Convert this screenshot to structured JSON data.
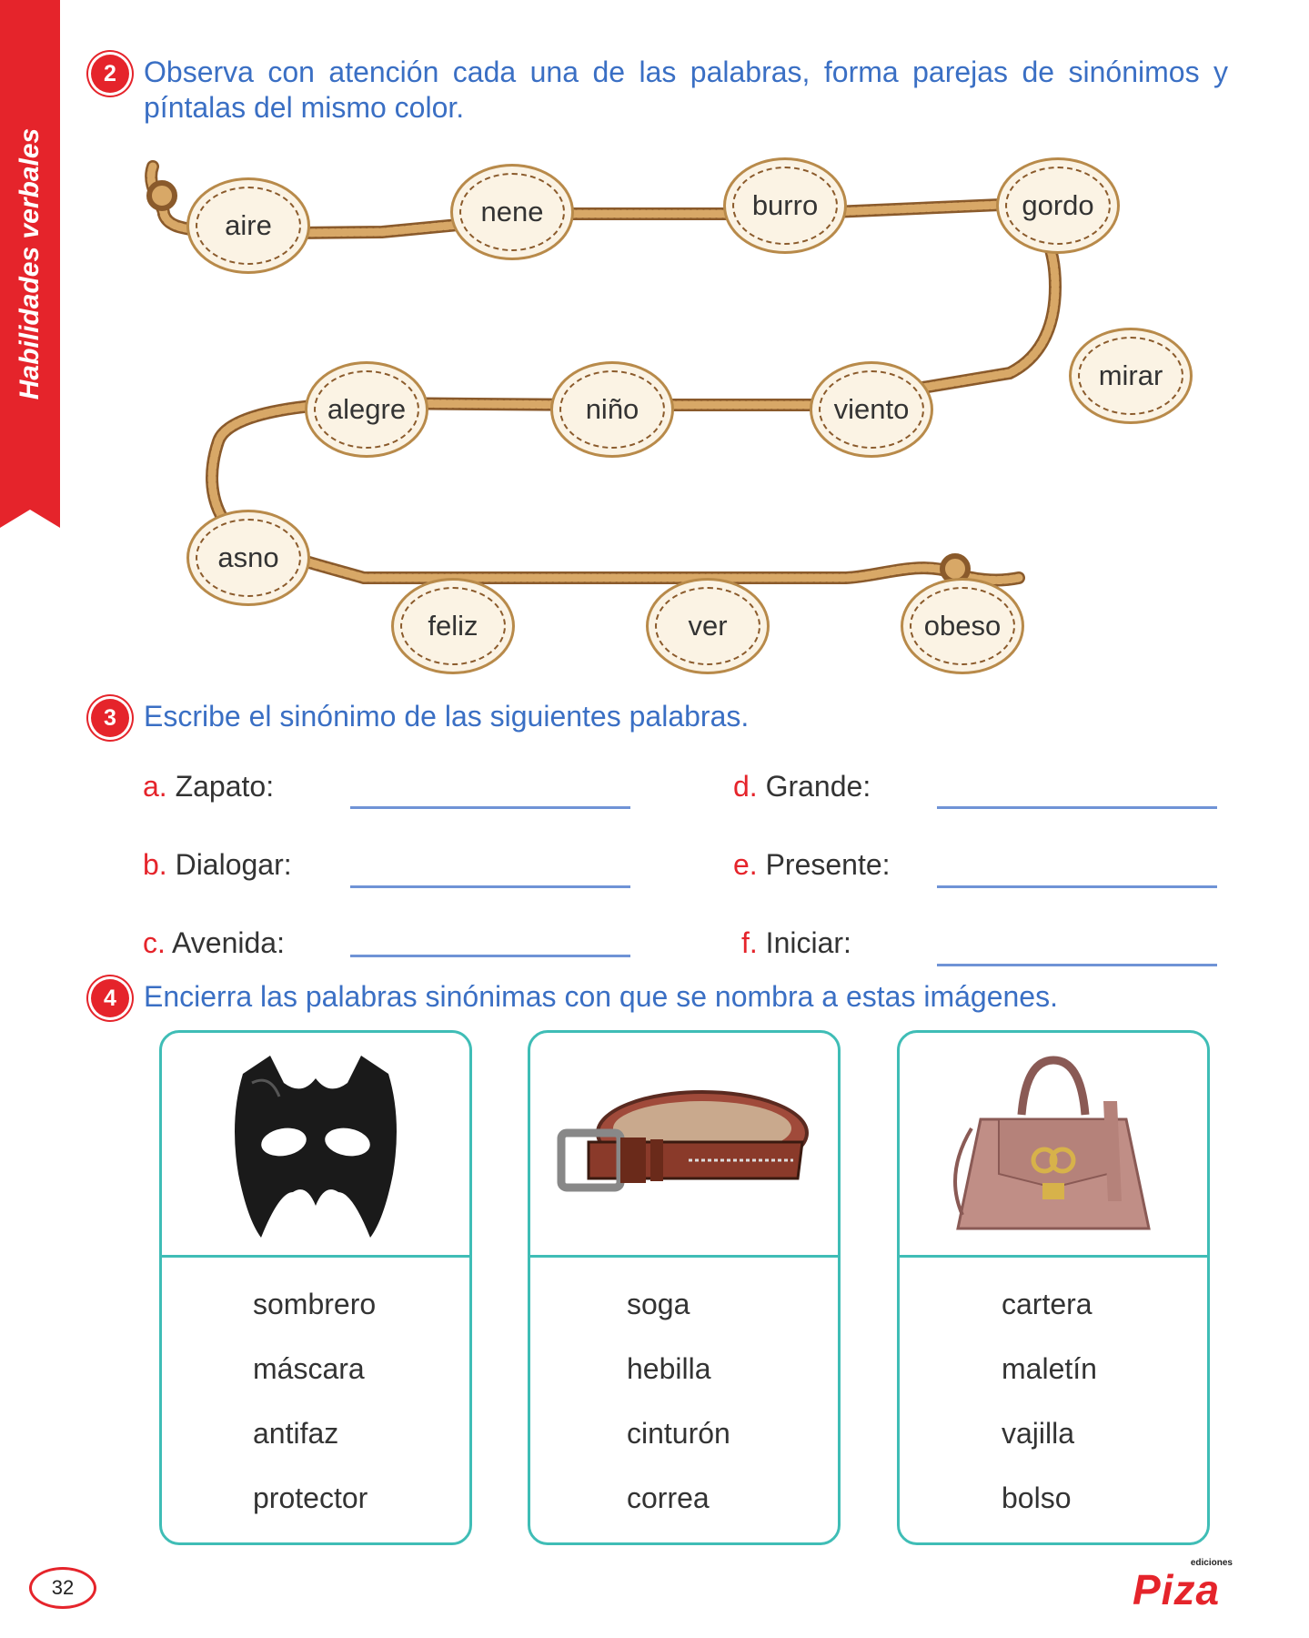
{
  "sidebar": {
    "label": "Habilidades verbales"
  },
  "exercise2": {
    "number": "2",
    "instruction": "Observa con atención cada una de las palabras, forma parejas de sinónimos y píntalas del mismo color.",
    "words": [
      "aire",
      "nene",
      "burro",
      "gordo",
      "mirar",
      "viento",
      "niño",
      "alegre",
      "asno",
      "feliz",
      "ver",
      "obeso"
    ]
  },
  "exercise3": {
    "number": "3",
    "instruction": "Escribe el sinónimo de las siguientes palabras.",
    "items": [
      {
        "letter": "a.",
        "word": "Zapato:"
      },
      {
        "letter": "b.",
        "word": "Dialogar:"
      },
      {
        "letter": "c.",
        "word": "Avenida:"
      },
      {
        "letter": "d.",
        "word": "Grande:"
      },
      {
        "letter": "e.",
        "word": "Presente:"
      },
      {
        "letter": "f.",
        "word": "Iniciar:"
      }
    ]
  },
  "exercise4": {
    "number": "4",
    "instruction": "Encierra las palabras sinónimas con que se nombra a estas imágenes.",
    "cards": [
      {
        "image": "mask-image",
        "options": [
          "sombrero",
          "máscara",
          "antifaz",
          "protector"
        ]
      },
      {
        "image": "belt-image",
        "options": [
          "soga",
          "hebilla",
          "cinturón",
          "correa"
        ]
      },
      {
        "image": "handbag-image",
        "options": [
          "cartera",
          "maletín",
          "vajilla",
          "bolso"
        ]
      }
    ]
  },
  "footer": {
    "page_number": "32",
    "publisher_top": "ediciones",
    "publisher": "Piza"
  },
  "colors": {
    "accent_red": "#e5242b",
    "instruction_blue": "#3a6fc4",
    "card_teal": "#3fbdb6",
    "rope_brown": "#b88a4a"
  }
}
